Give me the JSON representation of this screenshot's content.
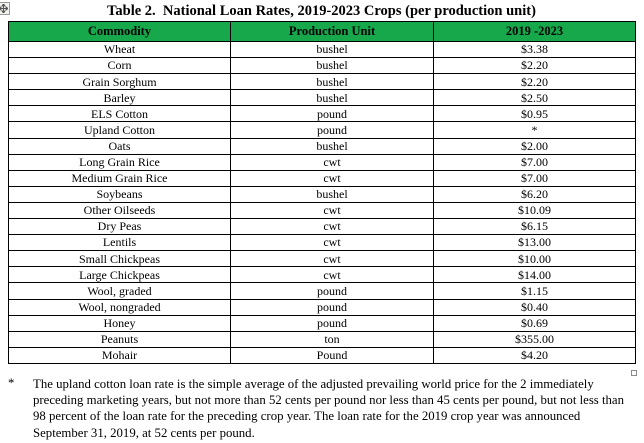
{
  "title": "Table 2.  National Loan Rates, 2019-2023 Crops (per production unit)",
  "table": {
    "header_bg": "#17A84C",
    "headers": [
      "Commodity",
      "Production Unit",
      "2019 -2023"
    ],
    "rows": [
      [
        "Wheat",
        "bushel",
        "$3.38"
      ],
      [
        "Corn",
        "bushel",
        "$2.20"
      ],
      [
        "Grain Sorghum",
        "bushel",
        "$2.20"
      ],
      [
        "Barley",
        "bushel",
        "$2.50"
      ],
      [
        "ELS Cotton",
        "pound",
        "$0.95"
      ],
      [
        "Upland Cotton",
        "pound",
        "*"
      ],
      [
        "Oats",
        "bushel",
        "$2.00"
      ],
      [
        "Long Grain Rice",
        "cwt",
        "$7.00"
      ],
      [
        "Medium Grain Rice",
        "cwt",
        "$7.00"
      ],
      [
        "Soybeans",
        "bushel",
        "$6.20"
      ],
      [
        "Other Oilseeds",
        "cwt",
        "$10.09"
      ],
      [
        "Dry Peas",
        "cwt",
        "$6.15"
      ],
      [
        "Lentils",
        "cwt",
        "$13.00"
      ],
      [
        "Small Chickpeas",
        "cwt",
        "$10.00"
      ],
      [
        "Large Chickpeas",
        "cwt",
        "$14.00"
      ],
      [
        "Wool, graded",
        "pound",
        "$1.15"
      ],
      [
        "Wool, nongraded",
        "pound",
        "$0.40"
      ],
      [
        "Honey",
        "pound",
        "$0.69"
      ],
      [
        "Peanuts",
        "ton",
        "$355.00"
      ],
      [
        "Mohair",
        "Pound",
        "$4.20"
      ]
    ]
  },
  "footnote": {
    "marker": "*",
    "text": "The upland cotton loan rate is the simple average of the adjusted prevailing world price for the 2 immediately preceding marketing years, but not more than 52 cents per pound nor less than 45 cents per pound, but not less than 98 percent of the loan rate for the preceding crop year. The loan rate for the 2019 crop year was announced September 31, 2019, at 52 cents per pound."
  }
}
